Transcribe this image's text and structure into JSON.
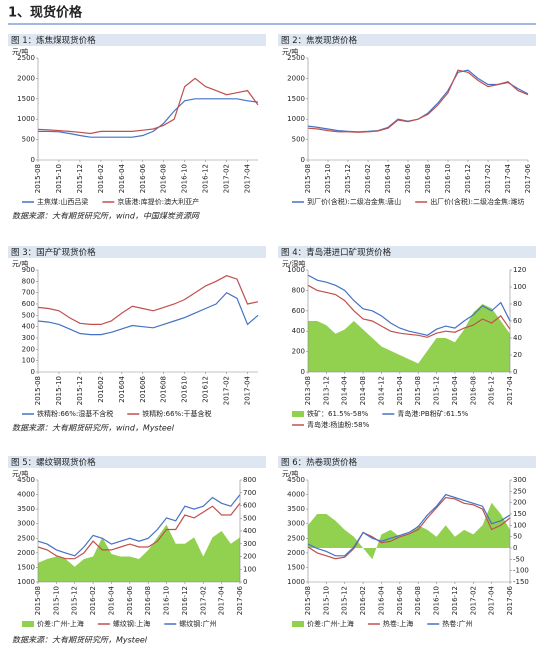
{
  "page_title": "1、现货价格",
  "sources": [
    "数据来源：大有期货研究所，wind，中国煤炭资源网",
    "数据来源：大有期货研究所，wind，Mysteel",
    "数据来源：大有期货研究所，Mysteel"
  ],
  "chart_data": [
    {
      "type": "line",
      "title": "图 1：炼焦煤现货价格",
      "y_unit": "元/吨",
      "categories": [
        "2015-08",
        null,
        "2015-10",
        null,
        "2015-12",
        null,
        "2016-02",
        null,
        "2016-04",
        null,
        "2016-06",
        null,
        "2016-08",
        null,
        "2016-10",
        null,
        "2016-12",
        null,
        "2017-02",
        null,
        "2017-04",
        null
      ],
      "ylim": [
        0,
        2500
      ],
      "yticks": [
        0,
        500,
        1000,
        1500,
        2000,
        2500
      ],
      "series": [
        {
          "name": "主焦煤:山西吕梁",
          "color": "#4472c4",
          "values": [
            700,
            700,
            690,
            650,
            600,
            560,
            560,
            560,
            560,
            560,
            600,
            700,
            900,
            1200,
            1450,
            1500,
            1500,
            1500,
            1500,
            1500,
            1450,
            1420
          ]
        },
        {
          "name": "京唐港:库提价:澳大利亚产",
          "color": "#c0504d",
          "values": [
            750,
            740,
            720,
            700,
            680,
            650,
            700,
            700,
            700,
            700,
            730,
            760,
            850,
            1000,
            1800,
            2000,
            1800,
            1700,
            1600,
            1650,
            1700,
            1350
          ]
        }
      ]
    },
    {
      "type": "line",
      "title": "图 2：焦炭现货价格",
      "y_unit": "元/吨",
      "categories": [
        "2015-08",
        null,
        "2015-10",
        null,
        "2015-12",
        null,
        "2016-02",
        null,
        "2016-04",
        null,
        "2016-06",
        null,
        "2016-08",
        null,
        "2016-10",
        null,
        "2016-12",
        null,
        "2017-02",
        null,
        "2017-04",
        null,
        "2017-06"
      ],
      "ylim": [
        0,
        2500
      ],
      "yticks": [
        0,
        500,
        1000,
        1500,
        2000,
        2500
      ],
      "series": [
        {
          "name": "到厂价(含税):二级冶金焦:唐山",
          "color": "#4472c4",
          "values": [
            830,
            800,
            760,
            720,
            700,
            690,
            700,
            720,
            800,
            1000,
            950,
            1000,
            1150,
            1400,
            1700,
            2150,
            2200,
            2000,
            1850,
            1850,
            1900,
            1750,
            1620
          ]
        },
        {
          "name": "出厂价(含税):二级冶金焦:潍坊",
          "color": "#c0504d",
          "values": [
            780,
            760,
            720,
            690,
            690,
            680,
            690,
            710,
            780,
            980,
            940,
            1000,
            1120,
            1350,
            1650,
            2200,
            2150,
            1950,
            1800,
            1850,
            1920,
            1700,
            1600
          ]
        }
      ]
    },
    {
      "type": "line",
      "title": "图 3：国产矿现货价格",
      "y_unit": "元/吨",
      "categories": [
        "2015-08",
        null,
        "2015-10",
        null,
        "2015-12",
        null,
        "201602",
        null,
        "201604",
        null,
        "201606",
        null,
        "201608",
        null,
        "201610",
        null,
        "201612",
        null,
        "2017-02",
        null,
        "2017-04",
        null
      ],
      "ylim": [
        0,
        900
      ],
      "yticks": [
        0,
        100,
        200,
        300,
        400,
        500,
        600,
        700,
        800,
        900
      ],
      "series": [
        {
          "name": "铁精粉:66%:湿基不含税",
          "color": "#4472c4",
          "values": [
            450,
            440,
            420,
            380,
            340,
            330,
            330,
            350,
            380,
            410,
            400,
            390,
            420,
            450,
            480,
            520,
            560,
            600,
            700,
            650,
            420,
            500
          ]
        },
        {
          "name": "铁精粉:66%:干基含税",
          "color": "#c0504d",
          "values": [
            570,
            560,
            540,
            480,
            430,
            420,
            420,
            450,
            520,
            580,
            560,
            540,
            570,
            600,
            640,
            700,
            760,
            800,
            850,
            820,
            600,
            620
          ]
        }
      ]
    },
    {
      "type": "line",
      "title": "图 4：青岛港进口矿现货价格",
      "y_unit": "元/湿吨",
      "categories": [
        "2013-08",
        null,
        "2013-12",
        null,
        "2014-04",
        null,
        "2014-08",
        null,
        "2014-12",
        null,
        "2015-04",
        null,
        "2015-08",
        null,
        "2015-12",
        null,
        "2016-04",
        null,
        "2016-08",
        null,
        "2016-12",
        null,
        "2017-04"
      ],
      "ylim": [
        0,
        1000
      ],
      "yticks": [
        0,
        200,
        400,
        600,
        800,
        1000
      ],
      "y2lim": [
        0,
        120
      ],
      "y2ticks": [
        0,
        20,
        40,
        60,
        80,
        100,
        120
      ],
      "series": [
        {
          "name": "铁矿：61.5%-58%",
          "color": "#92d050",
          "axis": "y2",
          "type": "area",
          "values": [
            60,
            60,
            55,
            45,
            50,
            60,
            50,
            40,
            30,
            25,
            20,
            15,
            10,
            25,
            40,
            40,
            35,
            50,
            70,
            80,
            75,
            60,
            45
          ]
        },
        {
          "name": "青岛港:PB粉矿:61.5%",
          "color": "#4472c4",
          "values": [
            950,
            900,
            880,
            850,
            800,
            700,
            620,
            600,
            550,
            480,
            430,
            400,
            380,
            360,
            420,
            450,
            430,
            500,
            560,
            650,
            600,
            680,
            500
          ]
        },
        {
          "name": "青岛港:杨迪粉:58%",
          "color": "#c0504d",
          "values": [
            850,
            800,
            780,
            760,
            700,
            600,
            520,
            500,
            450,
            400,
            380,
            370,
            360,
            340,
            380,
            400,
            390,
            430,
            460,
            520,
            480,
            550,
            420
          ]
        }
      ]
    },
    {
      "type": "line",
      "title": "图 5：螺纹钢现货价格",
      "y_unit": "元/吨",
      "categories": [
        "2015-08",
        null,
        "2015-10",
        null,
        "2015-12",
        null,
        "2016-02",
        null,
        "2016-04",
        null,
        "2016-06",
        null,
        "2016-08",
        null,
        "2016-10",
        null,
        "2016-12",
        null,
        "2017-02",
        null,
        "2017-04",
        null,
        "2017-06"
      ],
      "ylim": [
        1000,
        4500
      ],
      "yticks": [
        1000,
        1500,
        2000,
        2500,
        3000,
        3500,
        4000,
        4500
      ],
      "y2lim": [
        0,
        800
      ],
      "y2ticks": [
        0,
        100,
        200,
        300,
        400,
        500,
        600,
        700,
        800
      ],
      "series": [
        {
          "name": "价差:广州-上海",
          "color": "#92d050",
          "axis": "y2",
          "type": "area",
          "values": [
            150,
            180,
            200,
            180,
            120,
            180,
            200,
            350,
            220,
            200,
            200,
            180,
            250,
            350,
            450,
            300,
            300,
            350,
            200,
            350,
            400,
            300,
            350
          ]
        },
        {
          "name": "螺纹钢:上海",
          "color": "#c0504d",
          "values": [
            2200,
            2100,
            1900,
            1800,
            1800,
            2000,
            2400,
            2100,
            2100,
            2200,
            2300,
            2200,
            2200,
            2400,
            2800,
            2800,
            3300,
            3200,
            3400,
            3600,
            3300,
            3300,
            3700
          ]
        },
        {
          "name": "螺纹钢:广州",
          "color": "#4472c4",
          "values": [
            2400,
            2300,
            2100,
            2000,
            1900,
            2200,
            2600,
            2500,
            2300,
            2400,
            2500,
            2400,
            2500,
            2800,
            3200,
            3100,
            3600,
            3500,
            3600,
            3900,
            3700,
            3600,
            4000
          ]
        }
      ]
    },
    {
      "type": "line",
      "title": "图 6：热卷现货价格",
      "y_unit": "元/吨",
      "categories": [
        "2015-08",
        null,
        "2015-10",
        null,
        "2015-12",
        null,
        "2016-02",
        null,
        "2016-04",
        null,
        "2016-06",
        null,
        "2016-08",
        null,
        "2016-10",
        null,
        "2016-12",
        null,
        "2017-02",
        null,
        "2017-04",
        null,
        "2017-06"
      ],
      "ylim": [
        1000,
        4500
      ],
      "yticks": [
        1000,
        1500,
        2000,
        2500,
        3000,
        3500,
        4000,
        4500
      ],
      "y2lim": [
        -150,
        300
      ],
      "y2ticks": [
        -150,
        -100,
        -50,
        0,
        50,
        100,
        150,
        200,
        250,
        300
      ],
      "series": [
        {
          "name": "价差:广州-上海",
          "color": "#92d050",
          "axis": "y2",
          "type": "area",
          "values": [
            100,
            150,
            150,
            120,
            80,
            50,
            0,
            -50,
            60,
            80,
            50,
            60,
            100,
            80,
            50,
            100,
            50,
            80,
            60,
            100,
            200,
            150,
            80
          ]
        },
        {
          "name": "热卷:上海",
          "color": "#c0504d",
          "values": [
            2200,
            2000,
            1900,
            1800,
            1850,
            2150,
            2700,
            2550,
            2350,
            2400,
            2550,
            2650,
            2800,
            3200,
            3550,
            3900,
            3850,
            3700,
            3650,
            3500,
            2800,
            2950,
            3200
          ]
        },
        {
          "name": "热卷:广州",
          "color": "#4472c4",
          "values": [
            2300,
            2150,
            2050,
            1900,
            1900,
            2200,
            2700,
            2500,
            2400,
            2500,
            2600,
            2700,
            2900,
            3300,
            3600,
            4000,
            3900,
            3800,
            3700,
            3600,
            3000,
            3100,
            3300
          ]
        }
      ]
    }
  ]
}
